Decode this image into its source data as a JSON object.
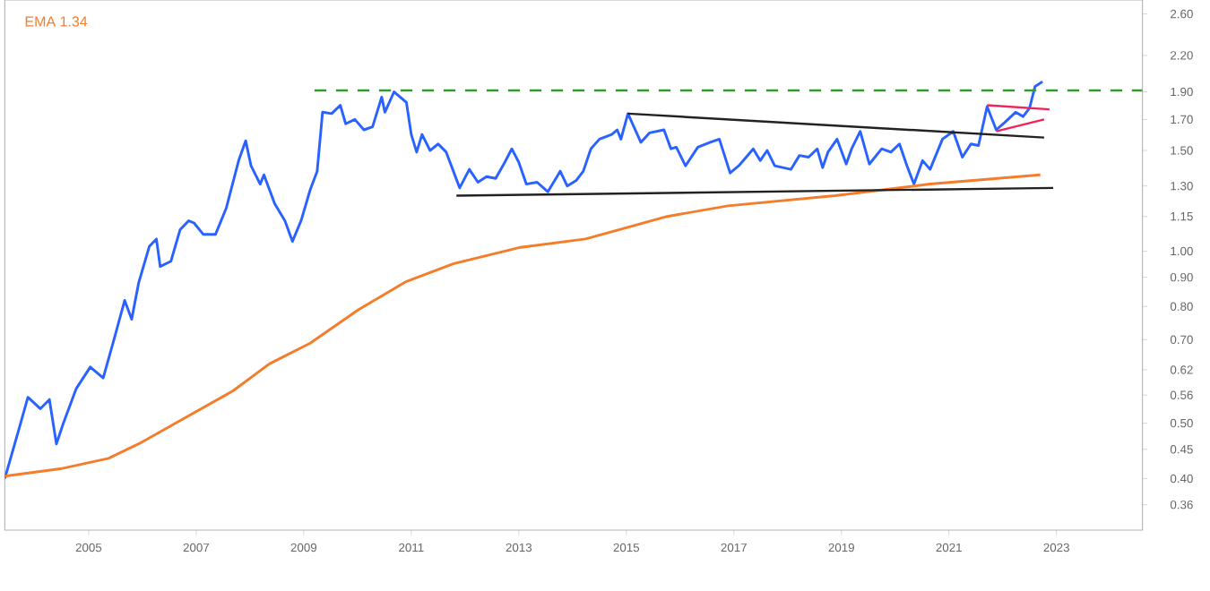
{
  "chart_data": {
    "type": "line",
    "log": "y",
    "xlim": [
      2003.44,
      2024.6
    ],
    "ylim": [
      0.325,
      2.75
    ],
    "xticks": [
      2005,
      2007,
      2009,
      2011,
      2013,
      2015,
      2017,
      2019,
      2021,
      2023
    ],
    "yticks": [
      {
        "value": 0.36,
        "label": "0.36"
      },
      {
        "value": 0.4,
        "label": "0.40"
      },
      {
        "value": 0.45,
        "label": "0.45"
      },
      {
        "value": 0.5,
        "label": "0.50"
      },
      {
        "value": 0.56,
        "label": "0.56"
      },
      {
        "value": 0.62,
        "label": "0.62"
      },
      {
        "value": 0.7,
        "label": "0.70"
      },
      {
        "value": 0.8,
        "label": "0.80"
      },
      {
        "value": 0.9,
        "label": "0.90"
      },
      {
        "value": 1.0,
        "label": "1.00"
      },
      {
        "value": 1.15,
        "label": "1.15"
      },
      {
        "value": 1.3,
        "label": "1.30"
      },
      {
        "value": 1.5,
        "label": "1.50"
      },
      {
        "value": 1.7,
        "label": "1.70"
      },
      {
        "value": 1.9,
        "label": "1.90"
      },
      {
        "value": 2.2,
        "label": "2.20"
      },
      {
        "value": 2.6,
        "label": "2.60"
      }
    ],
    "legend": "top left",
    "marker": "none",
    "grid": false,
    "annotations": [
      "1.34"
    ],
    "series": [
      {
        "color": "#2962ff",
        "x": [
          2003.44,
          2003.7,
          2003.87,
          2004.1,
          2004.27,
          2004.4,
          2004.53,
          2004.77,
          2005.03,
          2005.27,
          2005.47,
          2005.67,
          2005.8,
          2005.93,
          2006.13,
          2006.26,
          2006.33,
          2006.53,
          2006.7,
          2006.86,
          2006.96,
          2007.13,
          2007.36,
          2007.56,
          2007.79,
          2007.92,
          2008.02,
          2008.19,
          2008.26,
          2008.46,
          2008.65,
          2008.79,
          2008.95,
          2009.12,
          2009.25,
          2009.35,
          2009.52,
          2009.68,
          2009.78,
          2009.95,
          2010.12,
          2010.28,
          2010.45,
          2010.51,
          2010.68,
          2010.91,
          2011.0,
          2011.1,
          2011.2,
          2011.35,
          2011.5,
          2011.65,
          2011.9,
          2012.08,
          2012.24,
          2012.4,
          2012.57,
          2012.74,
          2012.87,
          2013.0,
          2013.14,
          2013.34,
          2013.54,
          2013.77,
          2013.9,
          2014.07,
          2014.2,
          2014.34,
          2014.5,
          2014.73,
          2014.83,
          2014.9,
          2015.03,
          2015.27,
          2015.43,
          2015.7,
          2015.83,
          2015.93,
          2016.1,
          2016.33,
          2016.56,
          2016.73,
          2016.93,
          2017.09,
          2017.23,
          2017.36,
          2017.49,
          2017.62,
          2017.76,
          2018.06,
          2018.22,
          2018.39,
          2018.55,
          2018.65,
          2018.75,
          2018.92,
          2019.09,
          2019.19,
          2019.35,
          2019.52,
          2019.75,
          2019.92,
          2020.08,
          2020.22,
          2020.35,
          2020.51,
          2020.65,
          2020.88,
          2021.08,
          2021.25,
          2021.41,
          2021.55,
          2021.71,
          2021.88,
          2022.04,
          2022.24,
          2022.38,
          2022.5,
          2022.6,
          2022.74
        ],
        "values": [
          0.4,
          0.487,
          0.555,
          0.53,
          0.55,
          0.46,
          0.5,
          0.575,
          0.627,
          0.6,
          0.7,
          0.82,
          0.76,
          0.88,
          1.02,
          1.05,
          0.94,
          0.96,
          1.09,
          1.13,
          1.12,
          1.07,
          1.07,
          1.19,
          1.44,
          1.56,
          1.41,
          1.31,
          1.36,
          1.21,
          1.13,
          1.04,
          1.13,
          1.28,
          1.38,
          1.75,
          1.74,
          1.8,
          1.67,
          1.7,
          1.63,
          1.65,
          1.86,
          1.75,
          1.9,
          1.82,
          1.6,
          1.49,
          1.6,
          1.5,
          1.54,
          1.49,
          1.29,
          1.39,
          1.32,
          1.35,
          1.34,
          1.43,
          1.51,
          1.43,
          1.31,
          1.32,
          1.27,
          1.38,
          1.3,
          1.33,
          1.38,
          1.51,
          1.57,
          1.6,
          1.63,
          1.57,
          1.74,
          1.55,
          1.61,
          1.63,
          1.51,
          1.52,
          1.41,
          1.52,
          1.55,
          1.57,
          1.37,
          1.41,
          1.46,
          1.51,
          1.44,
          1.5,
          1.41,
          1.39,
          1.47,
          1.46,
          1.51,
          1.4,
          1.49,
          1.57,
          1.42,
          1.51,
          1.62,
          1.42,
          1.51,
          1.49,
          1.54,
          1.41,
          1.31,
          1.44,
          1.39,
          1.57,
          1.62,
          1.46,
          1.54,
          1.53,
          1.79,
          1.63,
          1.68,
          1.75,
          1.72,
          1.78,
          1.94,
          1.98
        ]
      },
      {
        "name": "EMA",
        "color": "#f57c2a",
        "x": [
          2003.44,
          2004.47,
          2005.37,
          2005.93,
          2006.7,
          2007.69,
          2008.36,
          2009.12,
          2010.02,
          2010.91,
          2011.35,
          2011.78,
          2013.0,
          2014.24,
          2015.76,
          2016.89,
          2018.88,
          2020.65,
          2022.7
        ],
        "values": [
          0.404,
          0.416,
          0.434,
          0.46,
          0.505,
          0.57,
          0.635,
          0.69,
          0.79,
          0.885,
          0.917,
          0.95,
          1.014,
          1.05,
          1.15,
          1.2,
          1.25,
          1.31,
          1.36
        ]
      },
      {
        "color": "#2e9e2e",
        "line_style": "dashed",
        "x": [
          2009.2,
          2024.6
        ],
        "values": [
          1.91,
          1.91
        ]
      },
      {
        "color": "#222222",
        "x": [
          2011.84,
          2022.94
        ],
        "values": [
          1.25,
          1.29
        ]
      },
      {
        "color": "#222222",
        "x": [
          2015.03,
          2022.77
        ],
        "values": [
          1.74,
          1.58
        ]
      },
      {
        "color": "#f0245a",
        "x": [
          2021.71,
          2022.87
        ],
        "values": [
          1.8,
          1.77
        ]
      },
      {
        "color": "#f0245a",
        "x": [
          2021.88,
          2022.77
        ],
        "values": [
          1.62,
          1.7
        ]
      }
    ]
  }
}
